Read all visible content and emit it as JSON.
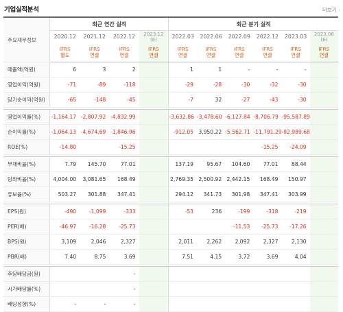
{
  "header": {
    "title": "기업실적분석",
    "more_label": "더보기",
    "more_arrow": "›"
  },
  "groups": {
    "annual": "최근 연간 실적",
    "quarter": "최근 분기 실적"
  },
  "row_header_label": "주요재무정보",
  "periods": [
    {
      "date": "2020.12",
      "est": "",
      "type1": "IFRS",
      "type2": "별도"
    },
    {
      "date": "2021.12",
      "est": "",
      "type1": "IFRS",
      "type2": "연결"
    },
    {
      "date": "2022.12",
      "est": "",
      "type1": "IFRS",
      "type2": "연결"
    },
    {
      "date": "2023.12",
      "est": "(E)",
      "type1": "IFRS",
      "type2": "연결"
    },
    {
      "date": "2022.03",
      "est": "",
      "type1": "IFRS",
      "type2": "연결"
    },
    {
      "date": "2022.06",
      "est": "",
      "type1": "IFRS",
      "type2": "연결"
    },
    {
      "date": "2022.09",
      "est": "",
      "type1": "IFRS",
      "type2": "연결"
    },
    {
      "date": "2022.12",
      "est": "",
      "type1": "IFRS",
      "type2": "연결"
    },
    {
      "date": "2023.03",
      "est": "",
      "type1": "IFRS",
      "type2": "연결"
    },
    {
      "date": "2023.06",
      "est": "(E)",
      "type1": "IFRS",
      "type2": "연결"
    }
  ],
  "rows": [
    {
      "label": "매출액(억원)",
      "values": [
        "6",
        "3",
        "2",
        "",
        "1",
        "1",
        "-",
        "-",
        "-",
        ""
      ]
    },
    {
      "label": "영업이익(억원)",
      "values": [
        "-71",
        "-89",
        "-118",
        "",
        "-29",
        "-28",
        "-30",
        "-32",
        "-30",
        ""
      ]
    },
    {
      "label": "당기순이익(억원)",
      "values": [
        "-65",
        "-148",
        "-45",
        "",
        "-7",
        "32",
        "-27",
        "-43",
        "-30",
        ""
      ]
    },
    {
      "label": "영업이익률(%)",
      "values": [
        "-1,164.17",
        "-2,807.92",
        "-4,832.99",
        "",
        "-3,632.86",
        "-3,478.60",
        "-6,127.84",
        "-8,706.79",
        "-95,587.89",
        ""
      ]
    },
    {
      "label": "순이익률(%)",
      "values": [
        "-1,064.13",
        "-4,674.69",
        "-1,846.96",
        "",
        "-912.05",
        "3,950.22",
        "-5,562.71",
        "-11,791.29",
        "-92,989.68",
        ""
      ]
    },
    {
      "label": "ROE(%)",
      "values": [
        "-14.80",
        "",
        "-15.25",
        "",
        "",
        "",
        "",
        "-15.25",
        "-24.09",
        ""
      ]
    },
    {
      "label": "부채비율(%)",
      "values": [
        "7.79",
        "145.70",
        "77.01",
        "",
        "137.19",
        "95.67",
        "104.60",
        "77.01",
        "88.44",
        ""
      ]
    },
    {
      "label": "당좌비율(%)",
      "values": [
        "4,004.00",
        "3,081.65",
        "168.49",
        "",
        "2,769.35",
        "2,500.92",
        "2,442.15",
        "168.49",
        "150.97",
        ""
      ]
    },
    {
      "label": "유보율(%)",
      "values": [
        "503.27",
        "301.88",
        "347.41",
        "",
        "294.12",
        "341.73",
        "301.98",
        "347.41",
        "303.99",
        ""
      ]
    },
    {
      "label": "EPS(원)",
      "values": [
        "-490",
        "-1,099",
        "-333",
        "",
        "-53",
        "236",
        "-199",
        "-318",
        "-219",
        ""
      ]
    },
    {
      "label": "PER(배)",
      "values": [
        "-46.97",
        "-16.28",
        "-25.73",
        "",
        "",
        "",
        "-11.53",
        "-25.73",
        "-17.26",
        ""
      ]
    },
    {
      "label": "BPS(원)",
      "values": [
        "3,109",
        "2,046",
        "2,327",
        "",
        "2,011",
        "2,262",
        "2,092",
        "2,327",
        "2,130",
        ""
      ]
    },
    {
      "label": "PBR(배)",
      "values": [
        "7.40",
        "8.75",
        "3.69",
        "",
        "7.51",
        "4.15",
        "3.72",
        "3.69",
        "4.04",
        ""
      ]
    },
    {
      "label": "주당배당금(원)",
      "values": [
        "",
        "",
        "-",
        "",
        "",
        "",
        "",
        "",
        "",
        ""
      ]
    },
    {
      "label": "시가배당률(%)",
      "values": [
        "",
        "",
        "-",
        "",
        "",
        "",
        "",
        "",
        "",
        ""
      ]
    },
    {
      "label": "배당성향(%)",
      "values": [
        "-",
        "-",
        "-",
        "",
        "",
        "",
        "",
        "",
        "",
        ""
      ]
    }
  ]
}
